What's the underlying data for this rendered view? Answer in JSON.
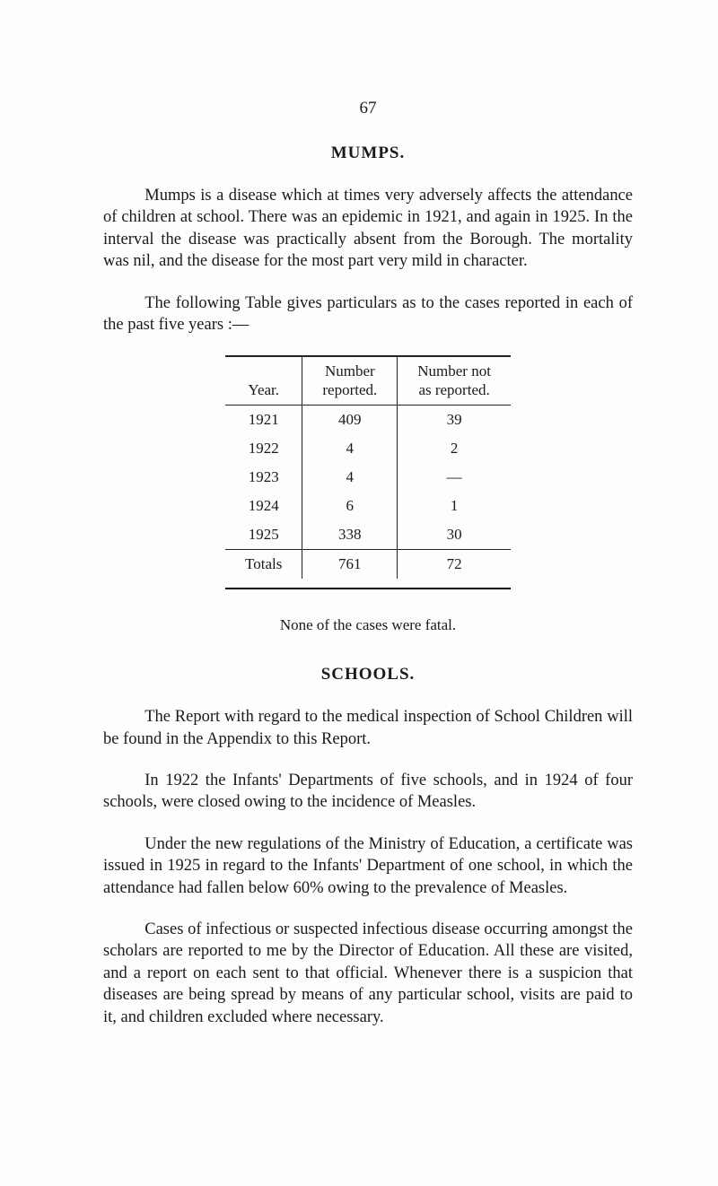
{
  "page_number": "67",
  "section1": {
    "title": "MUMPS.",
    "p1": "Mumps is a disease which at times very adversely affects the attendance of children at school. There was an epidemic in 1921, and again in 1925. In the interval the disease was practically absent from the Borough. The mortality was nil, and the disease for the most part very mild in character.",
    "p2": "The following Table gives particulars as to the cases reported in each of the past five years :—"
  },
  "table": {
    "columns": [
      "Year.",
      "Number reported.",
      "Number not as reported."
    ],
    "col_widths": [
      "90px",
      "150px",
      "160px"
    ],
    "header_fontsize": 16,
    "border_color": "#222222",
    "rows": [
      [
        "1921",
        "409",
        "39"
      ],
      [
        "1922",
        "4",
        "2"
      ],
      [
        "1923",
        "4",
        "—"
      ],
      [
        "1924",
        "6",
        "1"
      ],
      [
        "1925",
        "338",
        "30"
      ]
    ],
    "totals": [
      "Totals",
      "761",
      "72"
    ]
  },
  "caption": "None of the cases were fatal.",
  "section2": {
    "title": "SCHOOLS.",
    "p1": "The Report with regard to the medical inspection of School Children will be found in the Appendix to this Report.",
    "p2": "In 1922 the Infants' Departments of five schools, and in 1924 of four schools, were closed owing to the incidence of Measles.",
    "p3": "Under the new regulations of the Ministry of Education, a certificate was issued in 1925 in regard to the Infants' Department of one school, in which the attendance had fallen below 60% owing to the prevalence of Measles.",
    "p4": "Cases of infectious or suspected infectious disease occurring amongst the scholars are reported to me by the Director of Education. All these are visited, and a report on each sent to that official. Whenever there is a suspicion that diseases are being spread by means of any particular school, visits are paid to it, and children excluded where necessary."
  }
}
